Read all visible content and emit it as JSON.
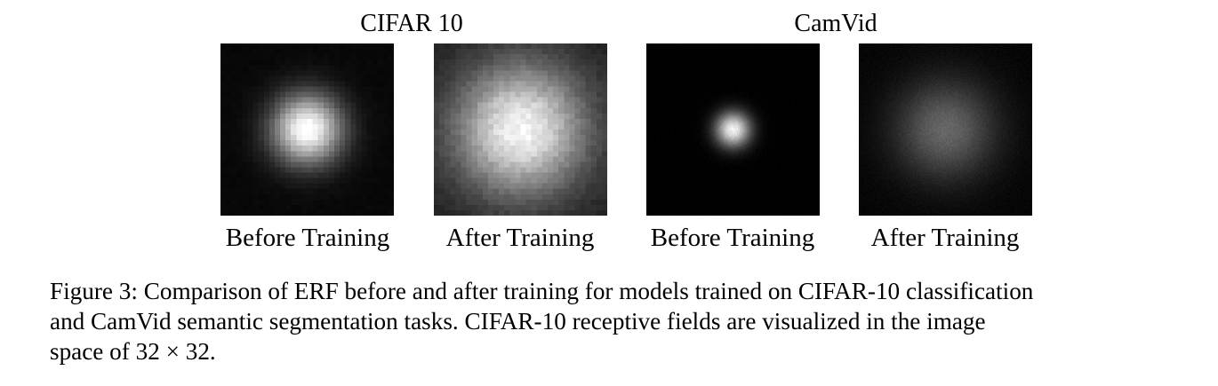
{
  "figure": {
    "groups": [
      {
        "title": "CIFAR 10",
        "panels": [
          {
            "label": "Before Training",
            "grid": 32,
            "sigma": 0.14,
            "gain": 1.0,
            "bg": 0.03,
            "noise": 0.05
          },
          {
            "label": "After Training",
            "grid": 32,
            "sigma": 0.26,
            "gain": 0.85,
            "bg": 0.12,
            "noise": 0.09
          }
        ]
      },
      {
        "title": "CamVid",
        "panels": [
          {
            "label": "Before Training",
            "grid": 195,
            "sigma": 0.07,
            "gain": 0.95,
            "bg": 0.0,
            "noise": 0.08
          },
          {
            "label": "After Training",
            "grid": 195,
            "sigma": 0.2,
            "gain": 0.38,
            "bg": 0.02,
            "noise": 0.1
          }
        ]
      }
    ],
    "caption": {
      "lines": [
        "Figure 3: Comparison of ERF before and after training for models trained on CIFAR-10 classification",
        "and CamVid semantic segmentation tasks. CIFAR-10 receptive fields are visualized in the image",
        "space of 32 × 32."
      ]
    }
  }
}
